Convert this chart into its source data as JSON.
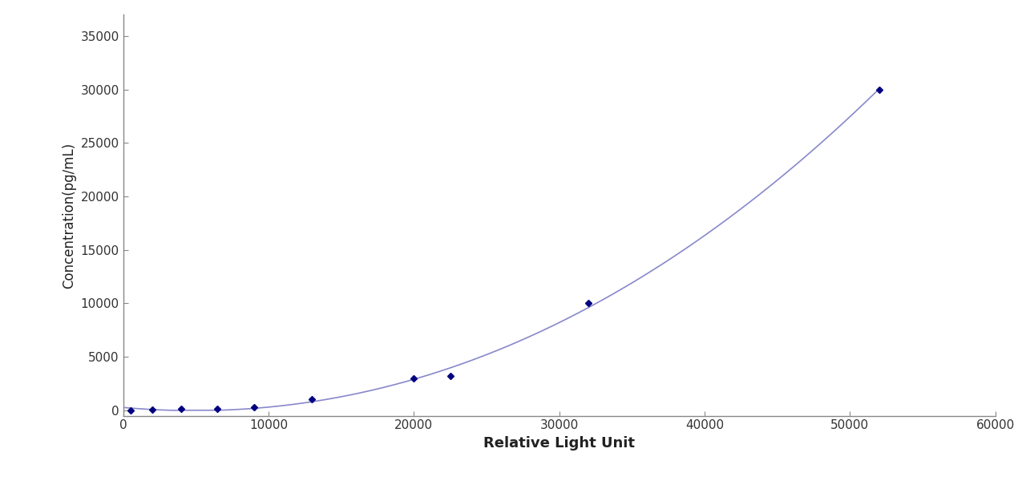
{
  "x_data": [
    500,
    2000,
    4000,
    6500,
    9000,
    13000,
    20000,
    22500,
    32000,
    52000
  ],
  "y_data": [
    0,
    50,
    100,
    150,
    250,
    1000,
    3000,
    3200,
    10000,
    30000
  ],
  "line_color": "#8888cc",
  "marker_color": "#000080",
  "marker_style": "D",
  "marker_size": 4,
  "xlabel": "Relative Light Unit",
  "ylabel": "Concentration(pg/mL)",
  "xlim": [
    0,
    60000
  ],
  "ylim": [
    -500,
    37000
  ],
  "xticks": [
    0,
    10000,
    20000,
    30000,
    40000,
    50000,
    60000
  ],
  "yticks": [
    0,
    5000,
    10000,
    15000,
    20000,
    25000,
    30000,
    35000
  ],
  "xlabel_fontsize": 13,
  "ylabel_fontsize": 12,
  "tick_fontsize": 11,
  "bg_color": "#ffffff",
  "line_width": 1.2,
  "xlabel_bold": true,
  "ylabel_bold": false
}
